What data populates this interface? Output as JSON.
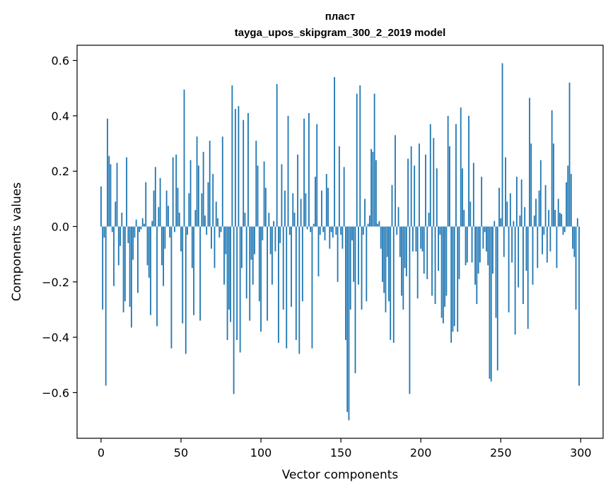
{
  "chart_data": {
    "type": "bar",
    "title_line1": "пласт",
    "title_line2": "tayga_upos_skipgram_300_2_2019 model",
    "xlabel": "Vector components",
    "ylabel": "Components values",
    "xlim": [
      -15,
      314
    ],
    "ylim": [
      -0.765,
      0.655
    ],
    "xticks": [
      0,
      50,
      100,
      150,
      200,
      250,
      300
    ],
    "xtick_labels": [
      "0",
      "50",
      "100",
      "150",
      "200",
      "250",
      "300"
    ],
    "yticks": [
      -0.6,
      -0.4,
      -0.2,
      0.0,
      0.2,
      0.4,
      0.6
    ],
    "ytick_labels": [
      "−0.6",
      "−0.4",
      "−0.2",
      "0.0",
      "0.2",
      "0.4",
      "0.6"
    ],
    "color": "#1f77b4",
    "values": [
      0.145,
      -0.3,
      -0.04,
      -0.575,
      0.39,
      0.255,
      0.225,
      -0.02,
      -0.215,
      0.09,
      0.23,
      -0.14,
      -0.07,
      0.05,
      -0.31,
      -0.27,
      0.25,
      -0.06,
      -0.29,
      -0.365,
      -0.12,
      -0.04,
      0.025,
      -0.24,
      -0.02,
      -0.01,
      0.03,
      0.01,
      0.16,
      -0.14,
      -0.185,
      -0.32,
      0.02,
      0.13,
      0.215,
      -0.36,
      0.07,
      0.175,
      -0.14,
      -0.215,
      -0.08,
      0.13,
      0.075,
      -0.04,
      -0.44,
      0.25,
      -0.02,
      0.26,
      0.14,
      0.05,
      -0.09,
      -0.35,
      0.495,
      -0.46,
      -0.03,
      0.12,
      0.24,
      -0.15,
      -0.32,
      0.06,
      0.325,
      0.22,
      -0.34,
      0.12,
      0.27,
      0.04,
      -0.03,
      0.16,
      0.31,
      -0.08,
      0.19,
      -0.15,
      0.09,
      0.03,
      -0.04,
      -0.02,
      0.325,
      -0.21,
      -0.1,
      -0.41,
      -0.3,
      -0.345,
      0.51,
      -0.605,
      0.425,
      -0.41,
      0.435,
      -0.455,
      -0.15,
      0.385,
      0.05,
      -0.26,
      0.41,
      -0.34,
      -0.12,
      -0.21,
      -0.1,
      0.31,
      0.22,
      -0.27,
      -0.38,
      -0.05,
      0.235,
      0.14,
      -0.34,
      0.05,
      -0.1,
      -0.21,
      0.02,
      -0.09,
      0.515,
      -0.42,
      -0.06,
      0.225,
      -0.3,
      0.13,
      -0.44,
      0.4,
      -0.03,
      -0.29,
      0.12,
      0.05,
      -0.41,
      0.26,
      -0.46,
      0.1,
      -0.27,
      0.39,
      0.12,
      -0.01,
      0.41,
      -0.02,
      -0.44,
      0.01,
      0.18,
      0.37,
      -0.18,
      -0.03,
      0.13,
      -0.02,
      -0.05,
      0.19,
      0.14,
      -0.08,
      -0.02,
      -0.04,
      0.54,
      -0.03,
      -0.2,
      0.29,
      -0.03,
      -0.08,
      0.215,
      -0.41,
      -0.67,
      -0.7,
      -0.3,
      -0.05,
      -0.2,
      -0.53,
      0.48,
      -0.21,
      0.51,
      -0.3,
      -0.03,
      0.1,
      -0.27,
      0.01,
      0.04,
      0.28,
      0.27,
      0.48,
      0.24,
      0.01,
      0.02,
      -0.08,
      -0.2,
      -0.24,
      -0.31,
      -0.11,
      -0.27,
      -0.41,
      0.15,
      -0.42,
      0.33,
      -0.03,
      0.07,
      -0.11,
      -0.25,
      -0.3,
      -0.15,
      -0.18,
      0.245,
      -0.605,
      0.29,
      -0.09,
      0.22,
      -0.09,
      -0.26,
      0.3,
      -0.08,
      -0.09,
      -0.17,
      0.26,
      -0.19,
      0.05,
      0.37,
      -0.25,
      0.32,
      -0.28,
      0.21,
      -0.16,
      -0.03,
      -0.33,
      -0.35,
      -0.29,
      -0.25,
      0.4,
      0.29,
      -0.42,
      -0.38,
      -0.36,
      0.37,
      -0.38,
      -0.19,
      0.43,
      0.21,
      0.06,
      -0.14,
      -0.13,
      0.4,
      0.09,
      -0.13,
      0.23,
      -0.21,
      -0.28,
      -0.17,
      -0.13,
      0.18,
      -0.08,
      -0.02,
      -0.09,
      -0.14,
      -0.55,
      -0.56,
      -0.17,
      0.02,
      -0.33,
      -0.52,
      0.14,
      0.03,
      0.59,
      -0.11,
      0.25,
      0.09,
      -0.31,
      0.12,
      -0.13,
      0.02,
      -0.39,
      0.18,
      -0.22,
      0.04,
      0.17,
      -0.28,
      0.07,
      -0.16,
      -0.37,
      0.465,
      0.3,
      -0.21,
      0.04,
      0.1,
      -0.15,
      0.13,
      0.24,
      -0.1,
      -0.03,
      0.15,
      -0.13,
      0.06,
      -0.09,
      0.42,
      0.3,
      0.06,
      -0.15,
      0.1,
      0.05,
      0.045,
      -0.03,
      -0.02,
      0.16,
      0.22,
      0.52,
      0.19,
      -0.08,
      -0.11,
      -0.3,
      0.03,
      -0.575
    ]
  }
}
